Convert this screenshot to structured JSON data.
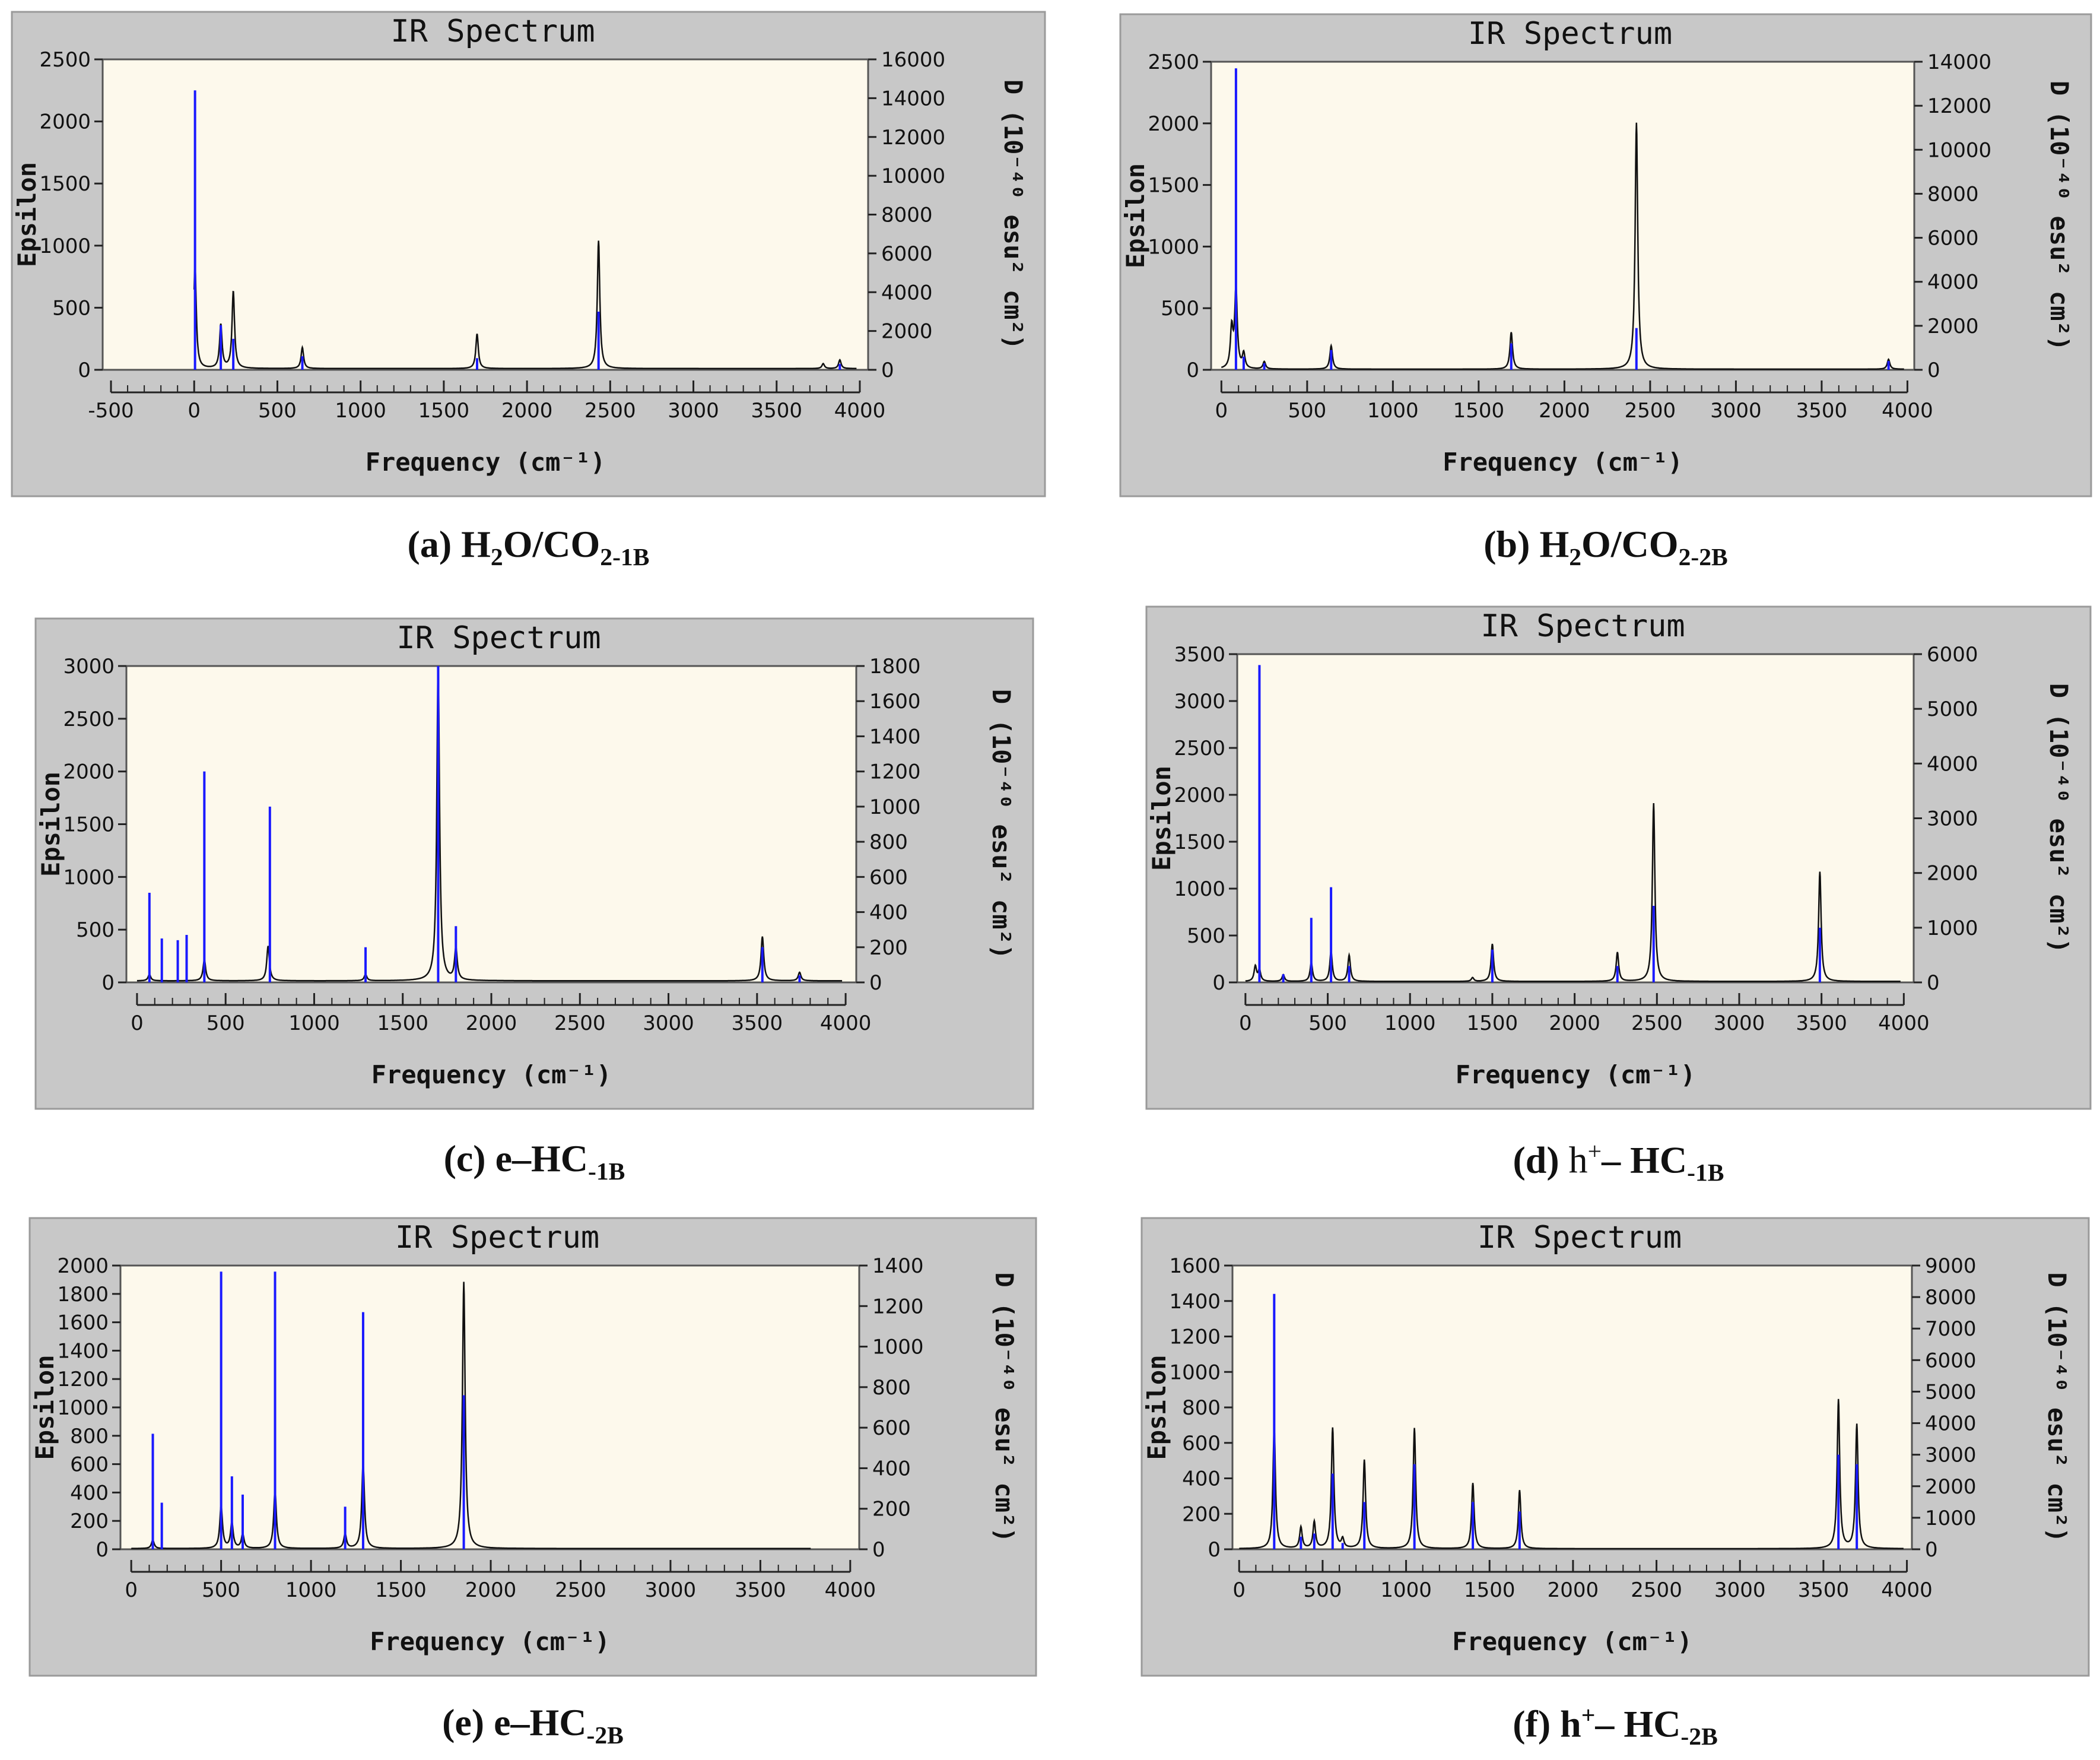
{
  "colors": {
    "panel": "#c8c8c8",
    "plot": "#fdf9ec",
    "stick": "#1a1aff",
    "curve": "#111111"
  },
  "panels": [
    {
      "id": "a",
      "title": "IR Spectrum",
      "caption": {
        "prefix": "(a) H",
        "sub1": "2",
        "mid": "O/CO",
        "sub2": "2-1B",
        "sup": "",
        "rest": ""
      },
      "chart_data": {
        "type": "line",
        "title": "IR Spectrum",
        "xlabel": "Frequency (cm⁻¹)",
        "ylabel": "Epsilon",
        "y2label": "D (10⁻⁴⁰ esu² cm²)",
        "xlim": [
          -500,
          4000
        ],
        "xticks": [
          -500,
          0,
          500,
          1000,
          1500,
          2000,
          2500,
          3000,
          3500,
          4000
        ],
        "ylim": [
          0,
          2500
        ],
        "yticks": [
          0,
          500,
          1000,
          1500,
          2000,
          2500
        ],
        "y2lim": [
          0,
          16000
        ],
        "y2ticks": [
          0,
          2000,
          4000,
          6000,
          8000,
          10000,
          12000,
          14000,
          16000
        ],
        "plot_xlim": [
          -550,
          4050
        ],
        "baseline": 10,
        "curve_peaks": [
          [
            5,
            830
          ],
          [
            160,
            350
          ],
          [
            235,
            620
          ],
          [
            650,
            170
          ],
          [
            1700,
            280
          ],
          [
            2430,
            1030
          ],
          [
            3780,
            40
          ],
          [
            3880,
            70
          ]
        ],
        "sticks": [
          [
            5,
            14400
          ],
          [
            160,
            2300
          ],
          [
            235,
            1600
          ],
          [
            650,
            700
          ],
          [
            1700,
            600
          ],
          [
            2430,
            3000
          ],
          [
            3880,
            300
          ]
        ]
      }
    },
    {
      "id": "b",
      "title": "IR Spectrum",
      "caption": {
        "prefix": "(b) H",
        "sub1": "2",
        "mid": "O/CO",
        "sub2": "2-2B",
        "sup": "",
        "rest": ""
      },
      "chart_data": {
        "type": "line",
        "title": "IR Spectrum",
        "xlabel": "Frequency (cm⁻¹)",
        "ylabel": "Epsilon",
        "y2label": "D (10⁻⁴⁰ esu² cm²)",
        "xlim": [
          0,
          4000
        ],
        "xticks": [
          0,
          500,
          1000,
          1500,
          2000,
          2500,
          3000,
          3500,
          4000
        ],
        "ylim": [
          0,
          2500
        ],
        "yticks": [
          0,
          500,
          1000,
          1500,
          2000,
          2500
        ],
        "y2lim": [
          0,
          14000
        ],
        "y2ticks": [
          0,
          2000,
          4000,
          6000,
          8000,
          10000,
          12000,
          14000
        ],
        "plot_xlim": [
          -60,
          4040
        ],
        "baseline": 5,
        "curve_peaks": [
          [
            60,
            320
          ],
          [
            85,
            640
          ],
          [
            130,
            120
          ],
          [
            250,
            60
          ],
          [
            640,
            190
          ],
          [
            1690,
            300
          ],
          [
            2420,
            2000
          ],
          [
            3890,
            80
          ]
        ],
        "sticks": [
          [
            85,
            13700
          ],
          [
            130,
            600
          ],
          [
            250,
            300
          ],
          [
            640,
            900
          ],
          [
            1690,
            1200
          ],
          [
            2420,
            1900
          ],
          [
            3890,
            400
          ]
        ]
      }
    },
    {
      "id": "c",
      "title": "IR Spectrum",
      "caption": {
        "prefix": "(c) e–HC",
        "sub1": "-1B",
        "mid": "",
        "sub2": "",
        "sup": "",
        "rest": ""
      },
      "chart_data": {
        "type": "line",
        "title": "IR Spectrum",
        "xlabel": "Frequency (cm⁻¹)",
        "ylabel": "Epsilon",
        "y2label": "D (10⁻⁴⁰ esu² cm²)",
        "xlim": [
          0,
          4000
        ],
        "xticks": [
          0,
          500,
          1000,
          1500,
          2000,
          2500,
          3000,
          3500,
          4000
        ],
        "ylim": [
          0,
          3000
        ],
        "yticks": [
          0,
          500,
          1000,
          1500,
          2000,
          2500,
          3000
        ],
        "y2lim": [
          0,
          1800
        ],
        "y2ticks": [
          0,
          200,
          400,
          600,
          800,
          1000,
          1200,
          1400,
          1600,
          1800
        ],
        "plot_xlim": [
          -60,
          4060
        ],
        "baseline": 15,
        "curve_peaks": [
          [
            70,
            60
          ],
          [
            380,
            200
          ],
          [
            740,
            330
          ],
          [
            1290,
            60
          ],
          [
            1700,
            3000
          ],
          [
            1800,
            300
          ],
          [
            3530,
            420
          ],
          [
            3740,
            80
          ]
        ],
        "sticks": [
          [
            70,
            510
          ],
          [
            140,
            250
          ],
          [
            230,
            240
          ],
          [
            280,
            270
          ],
          [
            380,
            1200
          ],
          [
            750,
            1000
          ],
          [
            1290,
            200
          ],
          [
            1700,
            1800
          ],
          [
            1800,
            320
          ],
          [
            3530,
            200
          ],
          [
            3740,
            40
          ]
        ]
      }
    },
    {
      "id": "d",
      "title": "IR Spectrum",
      "caption": {
        "prefix": "(d) ",
        "sub1": "",
        "mid": "h",
        "sub2": "",
        "sup": "+",
        "rest": "– HC",
        "restsub": "-1B"
      },
      "chart_data": {
        "type": "line",
        "title": "IR Spectrum",
        "xlabel": "Frequency (cm⁻¹)",
        "ylabel": "Epsilon",
        "y2label": "D (10⁻⁴⁰ esu² cm²)",
        "xlim": [
          0,
          4000
        ],
        "xticks": [
          0,
          500,
          1000,
          1500,
          2000,
          2500,
          3000,
          3500,
          4000
        ],
        "ylim": [
          0,
          3500
        ],
        "yticks": [
          0,
          500,
          1000,
          1500,
          2000,
          2500,
          3000,
          3500
        ],
        "y2lim": [
          0,
          6000
        ],
        "y2ticks": [
          0,
          1000,
          2000,
          3000,
          4000,
          5000,
          6000
        ],
        "plot_xlim": [
          -50,
          4060
        ],
        "baseline": 10,
        "curve_peaks": [
          [
            60,
            160
          ],
          [
            85,
            120
          ],
          [
            230,
            70
          ],
          [
            400,
            200
          ],
          [
            520,
            320
          ],
          [
            630,
            280
          ],
          [
            1380,
            40
          ],
          [
            1500,
            400
          ],
          [
            2260,
            310
          ],
          [
            2480,
            1900
          ],
          [
            3490,
            1170
          ]
        ],
        "sticks": [
          [
            85,
            5800
          ],
          [
            230,
            150
          ],
          [
            400,
            1180
          ],
          [
            520,
            1740
          ],
          [
            630,
            300
          ],
          [
            1500,
            600
          ],
          [
            2260,
            300
          ],
          [
            2480,
            1400
          ],
          [
            3490,
            1000
          ]
        ]
      }
    },
    {
      "id": "e",
      "title": "IR Spectrum",
      "caption": {
        "prefix": "(e) e–HC",
        "sub1": "-2B",
        "mid": "",
        "sub2": "",
        "sup": "",
        "rest": ""
      },
      "chart_data": {
        "type": "line",
        "title": "IR Spectrum",
        "xlabel": "Frequency (cm⁻¹)",
        "ylabel": "Epsilon",
        "y2label": "D (10⁻⁴⁰ esu² cm²)",
        "xlim": [
          0,
          4000
        ],
        "xticks": [
          0,
          500,
          1000,
          1500,
          2000,
          2500,
          3000,
          3500,
          4000
        ],
        "ylim": [
          0,
          2000
        ],
        "yticks": [
          0,
          200,
          400,
          600,
          800,
          1000,
          1200,
          1400,
          1600,
          1800,
          2000
        ],
        "y2lim": [
          0,
          1400
        ],
        "y2ticks": [
          0,
          200,
          400,
          600,
          800,
          1000,
          1200,
          1400
        ],
        "plot_xlim": [
          -60,
          4050
        ],
        "curve_xmax": 3780,
        "baseline": 5,
        "curve_peaks": [
          [
            120,
            60
          ],
          [
            500,
            300
          ],
          [
            560,
            180
          ],
          [
            620,
            100
          ],
          [
            800,
            410
          ],
          [
            1190,
            100
          ],
          [
            1290,
            600
          ],
          [
            1850,
            1880
          ]
        ],
        "sticks": [
          [
            120,
            570
          ],
          [
            170,
            230
          ],
          [
            500,
            1370
          ],
          [
            560,
            360
          ],
          [
            620,
            270
          ],
          [
            800,
            1370
          ],
          [
            1190,
            210
          ],
          [
            1290,
            1170
          ],
          [
            1850,
            760
          ]
        ]
      }
    },
    {
      "id": "f",
      "title": "IR Spectrum",
      "caption": {
        "prefix": "(f) h",
        "sub1": "",
        "mid": "",
        "sub2": "",
        "sup": "+",
        "rest": "– HC",
        "restsub": "-2B"
      },
      "chart_data": {
        "type": "line",
        "title": "IR Spectrum",
        "xlabel": "Frequency (cm⁻¹)",
        "ylabel": "Epsilon",
        "y2label": "D (10⁻⁴⁰ esu² cm²)",
        "xlim": [
          0,
          4000
        ],
        "xticks": [
          0,
          500,
          1000,
          1500,
          2000,
          2500,
          3000,
          3500,
          4000
        ],
        "ylim": [
          0,
          1600
        ],
        "yticks": [
          0,
          200,
          400,
          600,
          800,
          1000,
          1200,
          1400,
          1600
        ],
        "y2lim": [
          0,
          9000
        ],
        "y2ticks": [
          0,
          1000,
          2000,
          3000,
          4000,
          5000,
          6000,
          7000,
          8000,
          9000
        ],
        "plot_xlim": [
          -40,
          4030
        ],
        "baseline": 3,
        "curve_peaks": [
          [
            210,
            680
          ],
          [
            370,
            120
          ],
          [
            450,
            150
          ],
          [
            560,
            680
          ],
          [
            620,
            50
          ],
          [
            750,
            500
          ],
          [
            1050,
            680
          ],
          [
            1400,
            370
          ],
          [
            1680,
            330
          ],
          [
            3590,
            840
          ],
          [
            3700,
            700
          ]
        ],
        "sticks": [
          [
            210,
            8100
          ],
          [
            370,
            400
          ],
          [
            450,
            500
          ],
          [
            560,
            2400
          ],
          [
            620,
            200
          ],
          [
            750,
            1500
          ],
          [
            1050,
            2700
          ],
          [
            1400,
            1500
          ],
          [
            1680,
            1200
          ],
          [
            3590,
            3000
          ],
          [
            3700,
            2700
          ]
        ]
      }
    }
  ]
}
